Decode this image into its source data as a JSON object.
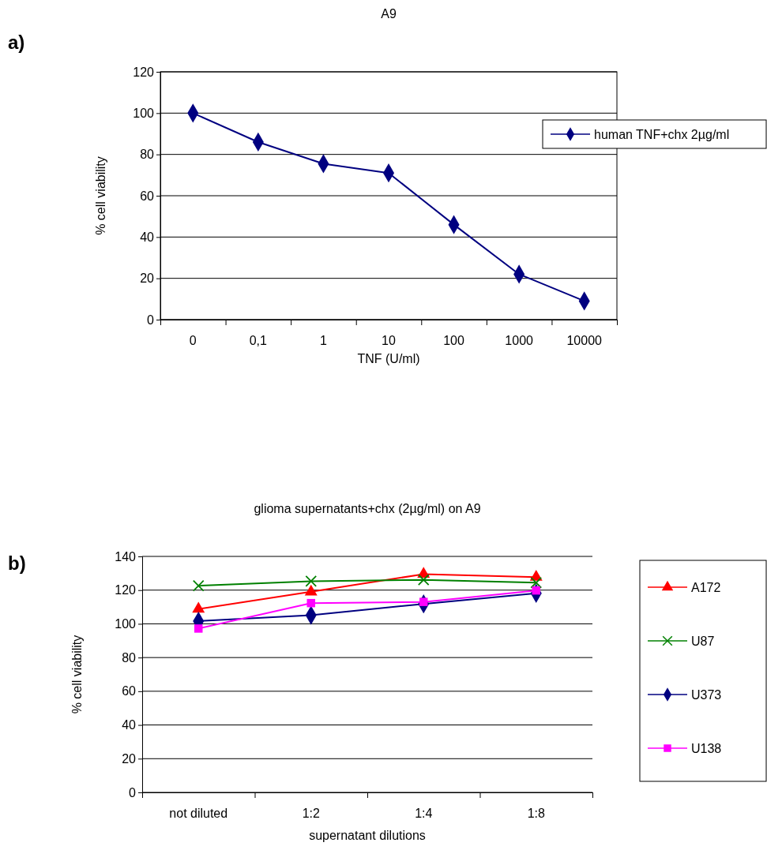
{
  "chart_data": [
    {
      "type": "line",
      "title": "A9",
      "xlabel": "TNF (U/ml)",
      "ylabel": "% cell viability",
      "annotations": [
        "a)"
      ],
      "categories": [
        "0",
        "0,1",
        "1",
        "10",
        "100",
        "1000",
        "10000"
      ],
      "series": [
        {
          "name": "human TNF+chx 2µg/ml",
          "color": "#000080",
          "marker": "diamond",
          "values": [
            100,
            86,
            75.5,
            71,
            46,
            22,
            9
          ]
        }
      ],
      "ylim": [
        0,
        120
      ],
      "yticks": [
        0,
        20,
        40,
        60,
        80,
        100,
        120
      ],
      "grid": "y",
      "legend": "right",
      "line_style": "solid"
    },
    {
      "type": "line",
      "title": "glioma supernatants+chx (2µg/ml) on A9",
      "xlabel": "supernatant dilutions",
      "ylabel": "% cell viability",
      "annotations": [
        "b)"
      ],
      "categories": [
        "not diluted",
        "1:2",
        "1:4",
        "1:8"
      ],
      "series": [
        {
          "name": "A172",
          "color": "#ff0000",
          "marker": "triangle",
          "values": [
            108.8,
            119,
            129.5,
            127.7
          ]
        },
        {
          "name": "U87",
          "color": "#008000",
          "marker": "cross",
          "values": [
            122.6,
            125.3,
            126.1,
            124.4
          ]
        },
        {
          "name": "U373",
          "color": "#000080",
          "marker": "diamond",
          "values": [
            101.6,
            105.1,
            111.8,
            118.1
          ]
        },
        {
          "name": "U138",
          "color": "#ff00ff",
          "marker": "square",
          "values": [
            97.2,
            112.3,
            113,
            119.8
          ]
        }
      ],
      "ylim": [
        0,
        140
      ],
      "yticks": [
        0,
        20,
        40,
        60,
        80,
        100,
        120,
        140
      ],
      "grid": "y",
      "legend": "right",
      "line_style": "solid"
    }
  ]
}
